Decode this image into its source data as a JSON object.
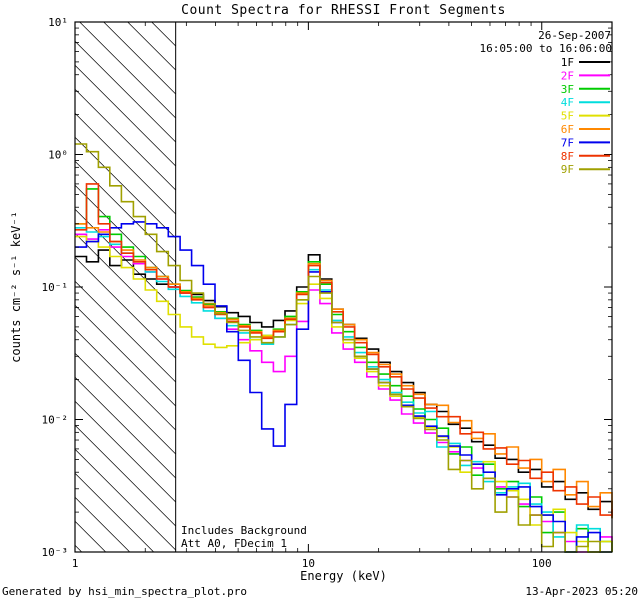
{
  "title": "Count Spectra for RHESSI Front Segments",
  "annotations": {
    "date": "26-Sep-2007",
    "interval": "16:05:00 to 16:06:00",
    "note1": "Includes Background",
    "note2": "Att A0, FDecim 1"
  },
  "footer": {
    "left": "Generated by hsi_min_spectra_plot.pro",
    "right": "13-Apr-2023 05:20"
  },
  "chart_data": {
    "type": "line",
    "mode": "staircase-histogram, log-log",
    "title": "Count Spectra for RHESSI Front Segments",
    "xlabel": "Energy (keV)",
    "ylabel": "counts cm⁻² s⁻¹ keV⁻¹",
    "xlim": [
      1,
      200
    ],
    "ylim": [
      0.001,
      10
    ],
    "grid": false,
    "legend_position": "top-right",
    "hatch_region": [
      1,
      2.7
    ],
    "xticks": [
      {
        "v": 1,
        "label": "1"
      },
      {
        "v": 10,
        "label": "10"
      },
      {
        "v": 100,
        "label": "100"
      }
    ],
    "yticks": [
      {
        "v": 10,
        "label": "10¹"
      },
      {
        "v": 1,
        "label": "10⁰"
      },
      {
        "v": 0.1,
        "label": "10⁻¹"
      },
      {
        "v": 0.01,
        "label": "10⁻²"
      },
      {
        "v": 0.001,
        "label": "10⁻³"
      }
    ],
    "energy_edges": [
      1.0,
      1.12,
      1.26,
      1.41,
      1.58,
      1.78,
      2.0,
      2.24,
      2.51,
      2.82,
      3.16,
      3.55,
      3.98,
      4.47,
      5.01,
      5.62,
      6.31,
      7.08,
      7.94,
      8.91,
      10.0,
      11.2,
      12.6,
      14.1,
      15.8,
      17.8,
      20.0,
      22.4,
      25.1,
      28.2,
      31.6,
      35.5,
      39.8,
      44.7,
      50.1,
      56.2,
      63.1,
      70.8,
      79.4,
      89.1,
      100.0,
      112.0,
      126.0,
      141.0,
      158.0,
      178.0,
      200.0
    ],
    "series": [
      {
        "name": "1F",
        "color": "#000000",
        "values": [
          0.17,
          0.155,
          0.19,
          0.145,
          0.16,
          0.125,
          0.115,
          0.105,
          0.1,
          0.093,
          0.088,
          0.079,
          0.071,
          0.064,
          0.06,
          0.054,
          0.05,
          0.056,
          0.066,
          0.1,
          0.175,
          0.115,
          0.068,
          0.052,
          0.041,
          0.034,
          0.027,
          0.023,
          0.019,
          0.016,
          0.013,
          0.0115,
          0.0092,
          0.0086,
          0.0068,
          0.0064,
          0.0051,
          0.005,
          0.004,
          0.0042,
          0.0031,
          0.0034,
          0.0025,
          0.0028,
          0.0021,
          0.0024,
          0.0018
        ]
      },
      {
        "name": "2F",
        "color": "#ff00ff",
        "values": [
          0.25,
          0.23,
          0.27,
          0.2,
          0.17,
          0.15,
          0.13,
          0.115,
          0.1,
          0.09,
          0.082,
          0.07,
          0.058,
          0.048,
          0.04,
          0.033,
          0.027,
          0.023,
          0.03,
          0.055,
          0.095,
          0.075,
          0.045,
          0.034,
          0.027,
          0.021,
          0.017,
          0.014,
          0.011,
          0.0094,
          0.0079,
          0.0067,
          0.0057,
          0.0049,
          0.0043,
          0.0036,
          0.0031,
          0.0026,
          0.0023,
          0.0019,
          0.0017,
          0.0014,
          0.0012,
          0.001,
          0.0009,
          0.0013,
          0.0008
        ]
      },
      {
        "name": "3F",
        "color": "#00cc00",
        "values": [
          0.3,
          0.55,
          0.34,
          0.25,
          0.2,
          0.17,
          0.14,
          0.12,
          0.105,
          0.094,
          0.084,
          0.074,
          0.065,
          0.058,
          0.052,
          0.047,
          0.043,
          0.048,
          0.06,
          0.092,
          0.155,
          0.105,
          0.062,
          0.046,
          0.035,
          0.027,
          0.022,
          0.018,
          0.015,
          0.012,
          0.01,
          0.0086,
          0.0055,
          0.0062,
          0.0038,
          0.0046,
          0.003,
          0.0034,
          0.0022,
          0.0026,
          0.0014,
          0.002,
          0.001,
          0.0015,
          0.0008,
          0.0012,
          0.0007
        ]
      },
      {
        "name": "4F",
        "color": "#00dddd",
        "values": [
          0.28,
          0.26,
          0.24,
          0.21,
          0.18,
          0.155,
          0.13,
          0.11,
          0.096,
          0.085,
          0.076,
          0.066,
          0.058,
          0.051,
          0.045,
          0.04,
          0.037,
          0.042,
          0.052,
          0.08,
          0.135,
          0.095,
          0.056,
          0.042,
          0.032,
          0.025,
          0.02,
          0.016,
          0.0135,
          0.0112,
          0.0115,
          0.0062,
          0.0066,
          0.0045,
          0.0048,
          0.0034,
          0.0028,
          0.0031,
          0.0033,
          0.0023,
          0.002,
          0.0013,
          0.001,
          0.0016,
          0.0015,
          0.0008,
          0.0006
        ]
      },
      {
        "name": "5F",
        "color": "#e0e000",
        "values": [
          0.24,
          0.22,
          0.2,
          0.17,
          0.14,
          0.115,
          0.095,
          0.078,
          0.062,
          0.05,
          0.042,
          0.037,
          0.035,
          0.036,
          0.038,
          0.04,
          0.043,
          0.047,
          0.056,
          0.075,
          0.105,
          0.082,
          0.05,
          0.038,
          0.029,
          0.023,
          0.018,
          0.015,
          0.0125,
          0.0104,
          0.0087,
          0.0074,
          0.0062,
          0.004,
          0.0046,
          0.0048,
          0.0034,
          0.0029,
          0.0025,
          0.0016,
          0.0019,
          0.0021,
          0.0014,
          0.0012,
          0.0007,
          0.0012,
          0.0008
        ]
      },
      {
        "name": "6F",
        "color": "#ff8800",
        "values": [
          0.3,
          0.28,
          0.26,
          0.22,
          0.19,
          0.16,
          0.14,
          0.12,
          0.105,
          0.092,
          0.082,
          0.072,
          0.064,
          0.057,
          0.051,
          0.046,
          0.042,
          0.047,
          0.058,
          0.09,
          0.15,
          0.112,
          0.068,
          0.052,
          0.04,
          0.032,
          0.026,
          0.022,
          0.018,
          0.0155,
          0.013,
          0.0128,
          0.0095,
          0.0098,
          0.0072,
          0.0078,
          0.0055,
          0.0062,
          0.0043,
          0.005,
          0.0034,
          0.0042,
          0.0027,
          0.0034,
          0.0022,
          0.0028,
          0.0018
        ]
      },
      {
        "name": "7F",
        "color": "#0000ee",
        "values": [
          0.2,
          0.22,
          0.25,
          0.28,
          0.3,
          0.31,
          0.3,
          0.28,
          0.24,
          0.19,
          0.145,
          0.105,
          0.072,
          0.046,
          0.028,
          0.016,
          0.0085,
          0.0063,
          0.013,
          0.048,
          0.13,
          0.092,
          0.054,
          0.04,
          0.03,
          0.024,
          0.019,
          0.0155,
          0.0128,
          0.0106,
          0.0089,
          0.0075,
          0.0063,
          0.0054,
          0.0046,
          0.004,
          0.0027,
          0.003,
          0.0031,
          0.0022,
          0.0019,
          0.0017,
          0.001,
          0.0013,
          0.0014,
          0.001,
          0.0007
        ]
      },
      {
        "name": "8F",
        "color": "#ee3300",
        "values": [
          0.27,
          0.6,
          0.3,
          0.22,
          0.18,
          0.155,
          0.135,
          0.115,
          0.1,
          0.09,
          0.08,
          0.07,
          0.062,
          0.055,
          0.05,
          0.045,
          0.041,
          0.046,
          0.057,
          0.088,
          0.145,
          0.108,
          0.065,
          0.05,
          0.038,
          0.031,
          0.025,
          0.021,
          0.017,
          0.0145,
          0.0122,
          0.0105,
          0.0105,
          0.0078,
          0.008,
          0.006,
          0.0061,
          0.0046,
          0.0049,
          0.0036,
          0.004,
          0.0029,
          0.0031,
          0.0023,
          0.0026,
          0.0019,
          0.0021
        ]
      },
      {
        "name": "9F",
        "color": "#a0a000",
        "values": [
          1.2,
          1.05,
          0.8,
          0.58,
          0.44,
          0.34,
          0.25,
          0.185,
          0.145,
          0.112,
          0.09,
          0.075,
          0.063,
          0.054,
          0.047,
          0.042,
          0.038,
          0.042,
          0.052,
          0.08,
          0.12,
          0.09,
          0.054,
          0.04,
          0.03,
          0.024,
          0.019,
          0.0155,
          0.0125,
          0.0102,
          0.0084,
          0.007,
          0.0042,
          0.0049,
          0.003,
          0.0036,
          0.002,
          0.0026,
          0.0016,
          0.0019,
          0.0011,
          0.0014,
          0.0008,
          0.0011,
          0.0012,
          0.0008,
          0.0006
        ]
      }
    ]
  }
}
